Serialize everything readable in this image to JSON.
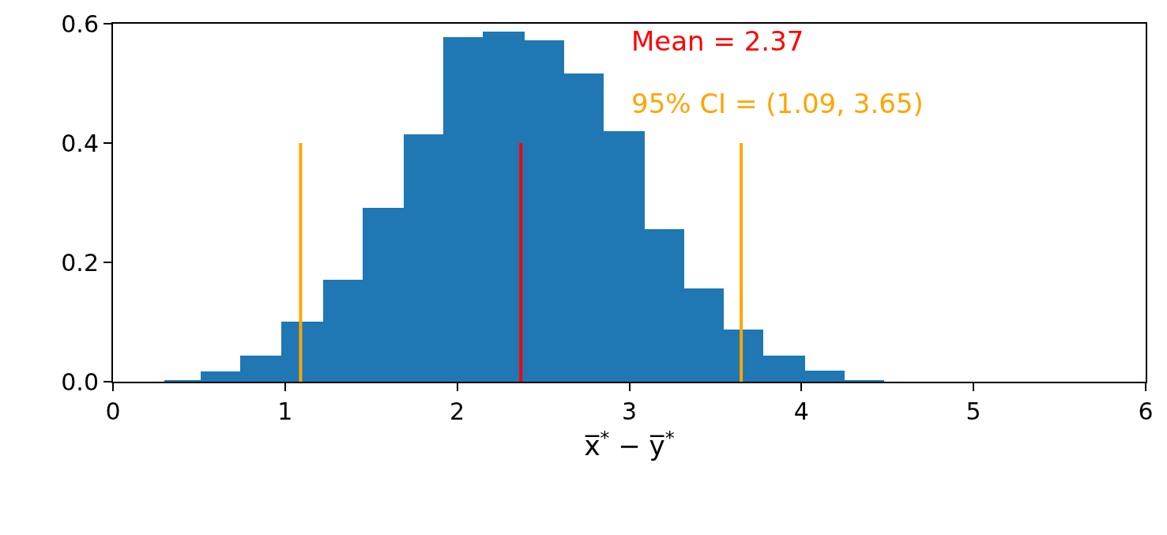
{
  "chart_data": {
    "type": "histogram",
    "xlabel": "x̅$^{*}$ − y̅$^{*}$",
    "color": "#1f77b4",
    "bins": [
      0.3,
      0.51,
      0.74,
      0.98,
      1.22,
      1.45,
      1.69,
      1.92,
      2.15,
      2.39,
      2.62,
      2.85,
      3.09,
      3.32,
      3.55,
      3.78,
      4.02,
      4.25,
      4.48
    ],
    "values": [
      0.003,
      0.017,
      0.044,
      0.101,
      0.171,
      0.292,
      0.415,
      0.577,
      0.587,
      0.572,
      0.516,
      0.42,
      0.255,
      0.156,
      0.087,
      0.044,
      0.019,
      0.003
    ],
    "series": [
      {
        "type": "line",
        "name": "Mean = 2.37",
        "color": "#ff0000",
        "x": [
          2.37,
          2.37
        ],
        "values": [
          0,
          0.4
        ]
      },
      {
        "type": "line",
        "name": "95% CI = (1.09, 3.65)",
        "color": "#ffa500",
        "x": [
          1.09,
          1.09,
          null,
          3.65,
          3.65
        ],
        "values": [
          0,
          0.4,
          null,
          0,
          0.4
        ]
      }
    ],
    "xlim": [
      0,
      6
    ],
    "xticks": [
      0,
      1,
      2,
      3,
      4,
      5,
      6
    ],
    "ylim": [
      0,
      0.6
    ],
    "yticks": [
      {
        "value": 0,
        "label": "0.0"
      },
      0.2,
      0.4,
      0.6
    ],
    "legend": "top"
  }
}
